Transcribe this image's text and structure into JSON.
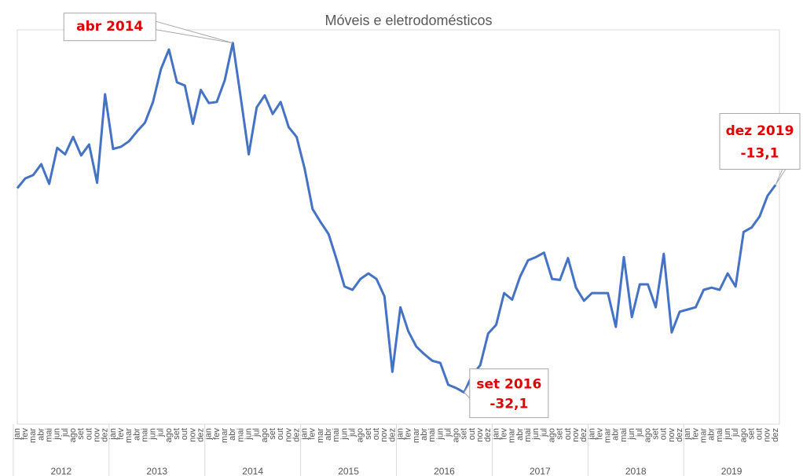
{
  "chart_data": {
    "type": "line",
    "title": "Móveis e eletrodomésticos",
    "categories": [
      "jan",
      "fev",
      "mar",
      "abr",
      "mai",
      "jun",
      "jul",
      "ago",
      "set",
      "out",
      "nov",
      "dez",
      "jan",
      "fev",
      "mar",
      "abr",
      "mai",
      "jun",
      "jul",
      "ago",
      "set",
      "out",
      "nov",
      "dez",
      "jan",
      "fev",
      "mar",
      "abr",
      "mai",
      "jun",
      "jul",
      "ago",
      "set",
      "out",
      "nov",
      "dez",
      "jan",
      "fev",
      "mar",
      "abr",
      "mai",
      "jun",
      "jul",
      "ago",
      "set",
      "out",
      "nov",
      "dez",
      "jan",
      "fev",
      "mar",
      "abr",
      "mai",
      "jun",
      "jul",
      "ago",
      "set",
      "out",
      "nov",
      "dez",
      "jan",
      "fev",
      "mar",
      "abr",
      "mai",
      "jun",
      "jul",
      "ago",
      "set",
      "out",
      "nov",
      "dez",
      "jan",
      "fev",
      "mar",
      "abr",
      "mai",
      "jun",
      "jul",
      "ago",
      "set",
      "out",
      "nov",
      "dez",
      "jan",
      "fev",
      "mar",
      "abr",
      "mai",
      "jun",
      "jul",
      "ago",
      "set",
      "out",
      "nov",
      "dez"
    ],
    "years": [
      "2012",
      "2013",
      "2014",
      "2015",
      "2016",
      "2017",
      "2018",
      "2019"
    ],
    "series": [
      {
        "name": "Móveis e eletrodomésticos",
        "color": "#4472c4",
        "values": [
          -13.4,
          -12.5,
          -12.2,
          -11.2,
          -13.0,
          -9.7,
          -10.3,
          -8.7,
          -10.4,
          -9.4,
          -12.9,
          -4.8,
          -9.8,
          -9.6,
          -9.1,
          -8.2,
          -7.4,
          -5.5,
          -2.5,
          -0.7,
          -3.7,
          -4.0,
          -7.5,
          -4.4,
          -5.6,
          -5.5,
          -3.5,
          -0.1,
          -5.1,
          -10.3,
          -6.0,
          -4.9,
          -6.6,
          -5.5,
          -7.8,
          -8.7,
          -11.6,
          -15.3,
          -16.5,
          -17.6,
          -19.9,
          -22.4,
          -22.7,
          -21.7,
          -21.2,
          -21.7,
          -23.3,
          -30.2,
          -24.3,
          -26.5,
          -27.9,
          -28.6,
          -29.2,
          -29.4,
          -31.4,
          -31.7,
          -32.1,
          -30.5,
          -29.6,
          -26.7,
          -25.9,
          -23.0,
          -23.6,
          -21.5,
          -20.0,
          -19.7,
          -19.3,
          -21.7,
          -21.8,
          -19.8,
          -22.5,
          -23.7,
          -23.0,
          -23.0,
          -23.0,
          -26.1,
          -19.7,
          -25.2,
          -22.2,
          -22.2,
          -24.3,
          -19.4,
          -26.6,
          -24.7,
          -24.5,
          -24.3,
          -22.7,
          -22.5,
          -22.7,
          -21.2,
          -22.4,
          -17.4,
          -17.0,
          -16.0,
          -14.1,
          -13.1
        ],
        "point_labels": [
          null,
          null,
          null,
          null,
          null,
          null,
          null,
          null,
          null,
          null,
          null,
          null,
          null,
          null,
          null,
          null,
          null,
          null,
          null,
          null,
          null,
          null,
          null,
          null,
          null,
          null,
          null,
          "abr 2014",
          null,
          null,
          null,
          null,
          null,
          null,
          null,
          null,
          null,
          null,
          null,
          null,
          null,
          null,
          null,
          null,
          null,
          null,
          null,
          null,
          null,
          null,
          null,
          null,
          null,
          null,
          null,
          null,
          "set 2016",
          null,
          null,
          null,
          null,
          null,
          null,
          null,
          null,
          null,
          null,
          null,
          null,
          null,
          null,
          null,
          null,
          null,
          null,
          null,
          null,
          null,
          null,
          null,
          null,
          null,
          null,
          null,
          null,
          null,
          null,
          null,
          null,
          null,
          null,
          null,
          null,
          null,
          null,
          "dez 2019"
        ],
        "value_labels": [
          null,
          null,
          null,
          null,
          null,
          null,
          null,
          null,
          null,
          null,
          null,
          null,
          null,
          null,
          null,
          null,
          null,
          null,
          null,
          null,
          null,
          null,
          null,
          null,
          null,
          null,
          null,
          null,
          null,
          null,
          null,
          null,
          null,
          null,
          null,
          null,
          null,
          null,
          null,
          null,
          null,
          null,
          null,
          null,
          null,
          null,
          null,
          null,
          null,
          null,
          null,
          null,
          null,
          null,
          null,
          null,
          "-32,1",
          null,
          null,
          null,
          null,
          null,
          null,
          null,
          null,
          null,
          null,
          null,
          null,
          null,
          null,
          null,
          null,
          null,
          null,
          null,
          null,
          null,
          null,
          null,
          null,
          null,
          null,
          null,
          null,
          null,
          null,
          null,
          null,
          null,
          null,
          null,
          null,
          null,
          null,
          "-13,1"
        ]
      }
    ],
    "ylim": [
      -35.0,
      1.1
    ]
  }
}
